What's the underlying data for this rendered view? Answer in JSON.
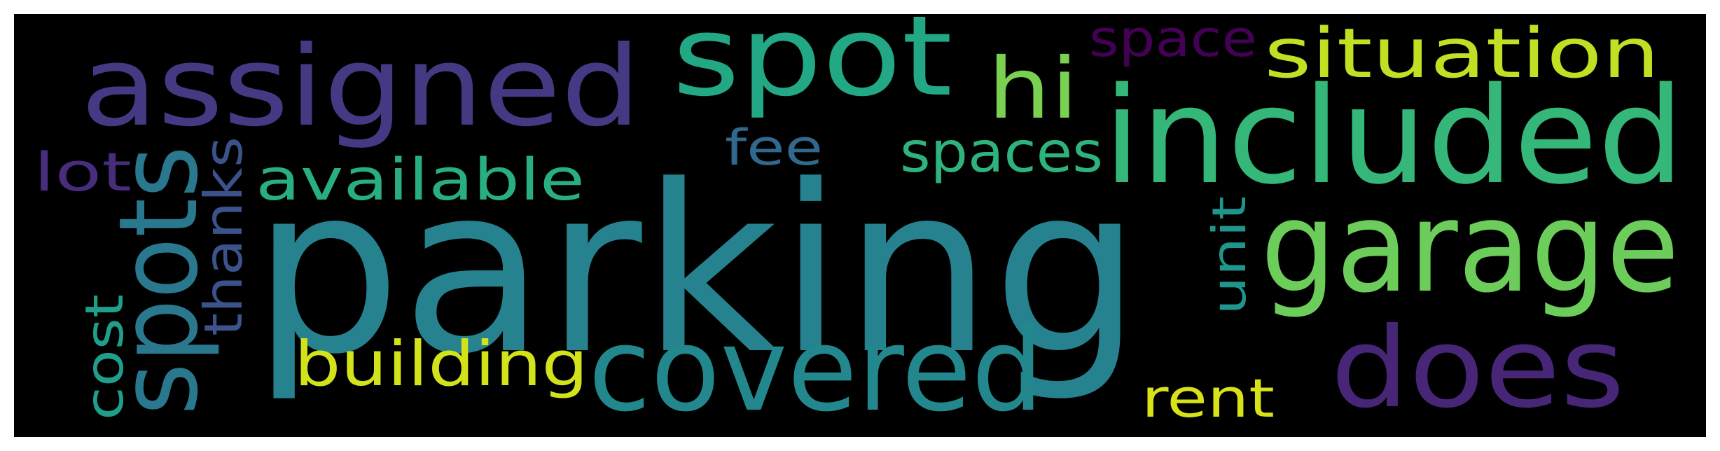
{
  "words": [
    {
      "text": "parking",
      "color": "#26828e"
    },
    {
      "text": "included",
      "color": "#35b779"
    },
    {
      "text": "garage",
      "color": "#6ccd5a"
    },
    {
      "text": "assigned",
      "color": "#443a83"
    },
    {
      "text": "spot",
      "color": "#22a884"
    },
    {
      "text": "covered",
      "color": "#23888e"
    },
    {
      "text": "does",
      "color": "#482677"
    },
    {
      "text": "situation",
      "color": "#c2df23"
    },
    {
      "text": "spots",
      "color": "#2a788e"
    },
    {
      "text": "hi",
      "color": "#7ad151"
    },
    {
      "text": "building",
      "color": "#d2e21b"
    },
    {
      "text": "available",
      "color": "#29af7f"
    },
    {
      "text": "spaces",
      "color": "#2eb37c"
    },
    {
      "text": "rent",
      "color": "#d8e219"
    },
    {
      "text": "thanks",
      "color": "#3b528b"
    },
    {
      "text": "space",
      "color": "#440154"
    },
    {
      "text": "lot",
      "color": "#472d7b"
    },
    {
      "text": "fee",
      "color": "#31688e"
    },
    {
      "text": "cost",
      "color": "#1f9e89"
    },
    {
      "text": "unit",
      "color": "#1f968b"
    }
  ]
}
